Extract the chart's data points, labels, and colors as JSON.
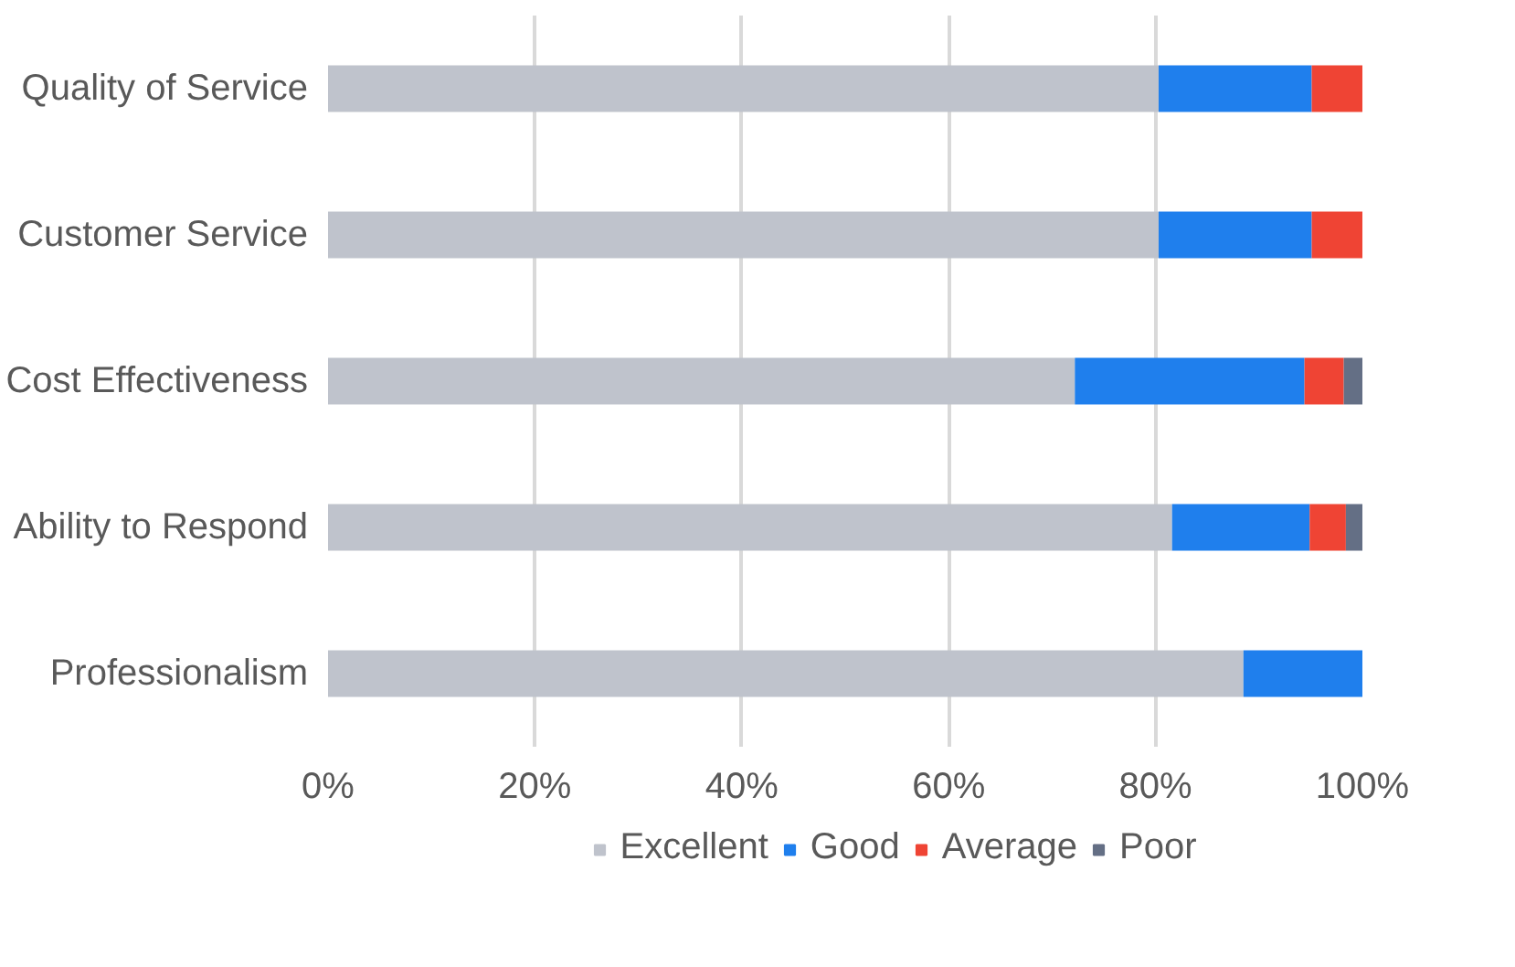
{
  "chart_data": {
    "type": "bar",
    "orientation": "horizontal",
    "stacked": true,
    "categories": [
      "Quality of Service",
      "Customer Service",
      "Cost Effectiveness",
      "Ability to Respond",
      "Professionalism"
    ],
    "series": [
      {
        "name": "Excellent",
        "color": "#bfc3cc",
        "values": [
          80.3,
          80.3,
          72.2,
          81.6,
          88.5
        ]
      },
      {
        "name": "Good",
        "color": "#1f7fed",
        "values": [
          14.8,
          14.8,
          22.2,
          13.3,
          11.5
        ]
      },
      {
        "name": "Average",
        "color": "#ef4434",
        "values": [
          4.9,
          4.9,
          3.8,
          3.5,
          0
        ]
      },
      {
        "name": "Poor",
        "color": "#646f85",
        "values": [
          0,
          0,
          1.8,
          1.6,
          0
        ]
      }
    ],
    "xlim": [
      0,
      100
    ],
    "xticks": [
      {
        "value": 0,
        "label": "0%"
      },
      {
        "value": 20,
        "label": "20%"
      },
      {
        "value": 40,
        "label": "40%"
      },
      {
        "value": 60,
        "label": "60%"
      },
      {
        "value": 80,
        "label": "80%"
      },
      {
        "value": 100,
        "label": "100%"
      }
    ],
    "grid": "x",
    "legend": "bottom"
  }
}
